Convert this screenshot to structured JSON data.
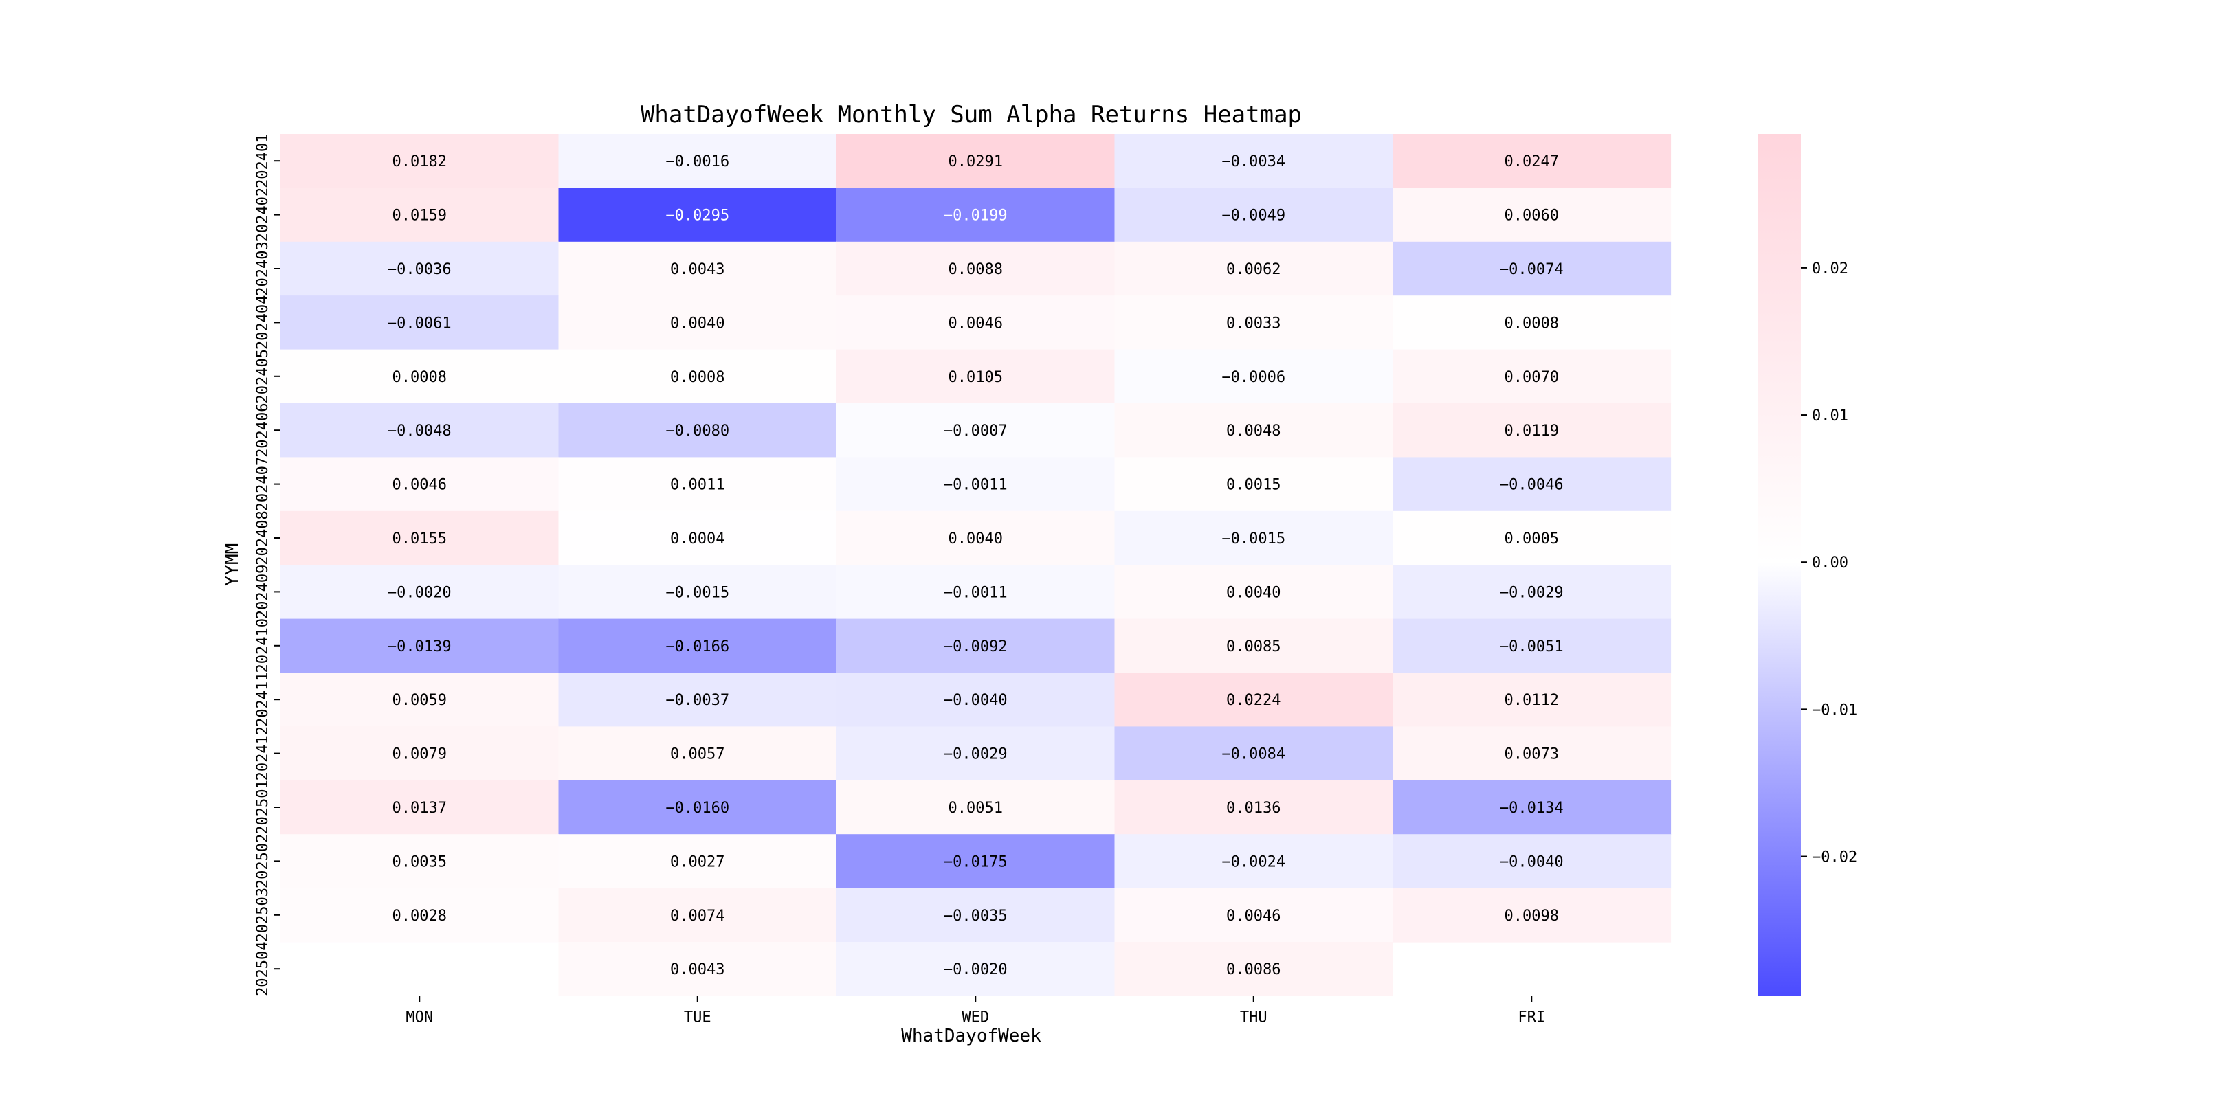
{
  "chart_data": {
    "type": "heatmap",
    "title": "WhatDayofWeek Monthly Sum Alpha Returns Heatmap",
    "xlabel": "WhatDayofWeek",
    "ylabel": "YYMM",
    "columns": [
      "MON",
      "TUE",
      "WED",
      "THU",
      "FRI"
    ],
    "rows": [
      "202401",
      "202402",
      "202403",
      "202404",
      "202405",
      "202406",
      "202407",
      "202408",
      "202409",
      "202410",
      "202411",
      "202412",
      "202501",
      "202502",
      "202503",
      "202504"
    ],
    "values": [
      [
        0.0182,
        -0.0016,
        0.0291,
        -0.0034,
        0.0247
      ],
      [
        0.0159,
        -0.0295,
        -0.0199,
        -0.0049,
        0.006
      ],
      [
        -0.0036,
        0.0043,
        0.0088,
        0.0062,
        -0.0074
      ],
      [
        -0.0061,
        0.004,
        0.0046,
        0.0033,
        0.0008
      ],
      [
        0.0008,
        0.0008,
        0.0105,
        -0.0006,
        0.007
      ],
      [
        -0.0048,
        -0.008,
        -0.0007,
        0.0048,
        0.0119
      ],
      [
        0.0046,
        0.0011,
        -0.0011,
        0.0015,
        -0.0046
      ],
      [
        0.0155,
        0.0004,
        0.004,
        -0.0015,
        0.0005
      ],
      [
        -0.002,
        -0.0015,
        -0.0011,
        0.004,
        -0.0029
      ],
      [
        -0.0139,
        -0.0166,
        -0.0092,
        0.0085,
        -0.0051
      ],
      [
        0.0059,
        -0.0037,
        -0.004,
        0.0224,
        0.0112
      ],
      [
        0.0079,
        0.0057,
        -0.0029,
        -0.0084,
        0.0073
      ],
      [
        0.0137,
        -0.016,
        0.0051,
        0.0136,
        -0.0134
      ],
      [
        0.0035,
        0.0027,
        -0.0175,
        -0.0024,
        -0.004
      ],
      [
        0.0028,
        0.0074,
        -0.0035,
        0.0046,
        0.0098
      ],
      [
        null,
        0.0043,
        -0.002,
        0.0086,
        null
      ]
    ],
    "value_format": "4 decimals",
    "colormap": {
      "negative": "#4b4bff",
      "zero": "#ffffff",
      "positive": "#ffd5dd"
    },
    "value_range": [
      -0.0295,
      0.0291
    ],
    "colorbar_ticks": [
      {
        "value": 0.02,
        "label": "0.02"
      },
      {
        "value": 0.01,
        "label": "0.01"
      },
      {
        "value": 0.0,
        "label": "0.00"
      },
      {
        "value": -0.01,
        "label": "−0.01"
      },
      {
        "value": -0.02,
        "label": "−0.02"
      }
    ]
  }
}
